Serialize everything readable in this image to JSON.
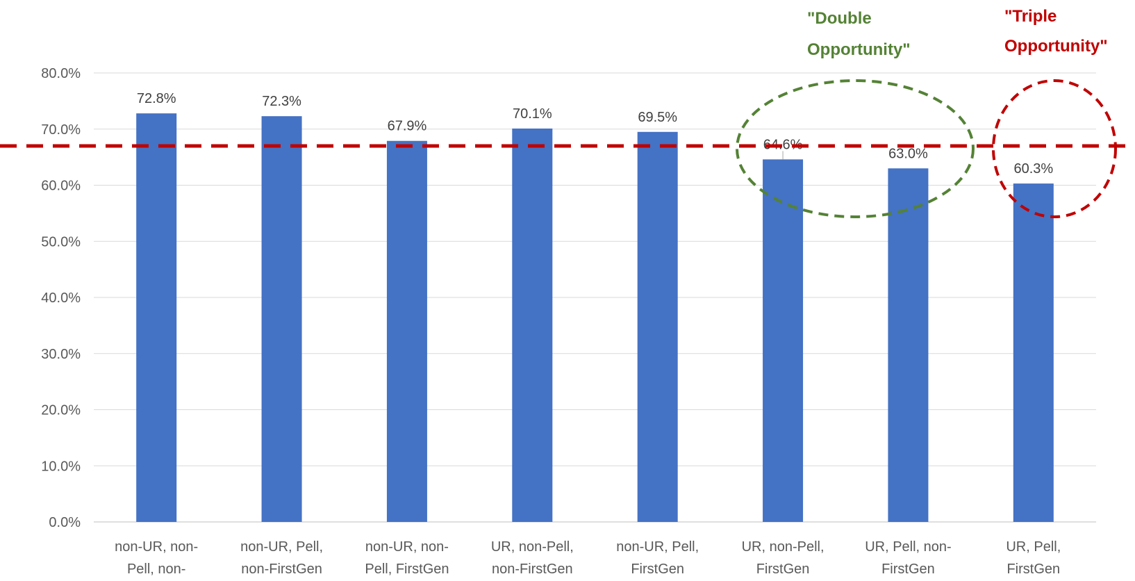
{
  "chart_data": {
    "type": "bar",
    "categories": [
      [
        "non-UR, non-",
        "Pell, non-"
      ],
      [
        "non-UR, Pell,",
        "non-FirstGen"
      ],
      [
        "non-UR, non-",
        "Pell, FirstGen"
      ],
      [
        "UR, non-Pell,",
        "non-FirstGen"
      ],
      [
        "non-UR, Pell,",
        "FirstGen"
      ],
      [
        "UR, non-Pell,",
        "FirstGen"
      ],
      [
        "UR, Pell, non-",
        "FirstGen"
      ],
      [
        "UR, Pell,",
        "FirstGen"
      ]
    ],
    "values": [
      72.8,
      72.3,
      67.9,
      70.1,
      69.5,
      64.6,
      63.0,
      60.3
    ],
    "data_labels": [
      "72.8%",
      "72.3%",
      "67.9%",
      "70.1%",
      "69.5%",
      "64.6%",
      "63.0%",
      "60.3%"
    ],
    "ylim": [
      0,
      80
    ],
    "yticks": [
      0,
      10,
      20,
      30,
      40,
      50,
      60,
      70,
      80
    ],
    "ytick_labels": [
      "0.0%",
      "10.0%",
      "20.0%",
      "30.0%",
      "40.0%",
      "50.0%",
      "60.0%",
      "70.0%",
      "80.0%"
    ],
    "reference_line": {
      "value": 67.0,
      "color": "#c00000",
      "style": "dashed"
    },
    "bar_color": "#4472c4",
    "grid": true,
    "title": "",
    "xlabel": "",
    "ylabel": ""
  },
  "annotations": {
    "double": {
      "lines": [
        "\"Double",
        "Opportunity\""
      ],
      "color": "#548235"
    },
    "triple": {
      "lines": [
        "\"Triple",
        "Opportunity\""
      ],
      "color": "#c00000"
    }
  }
}
